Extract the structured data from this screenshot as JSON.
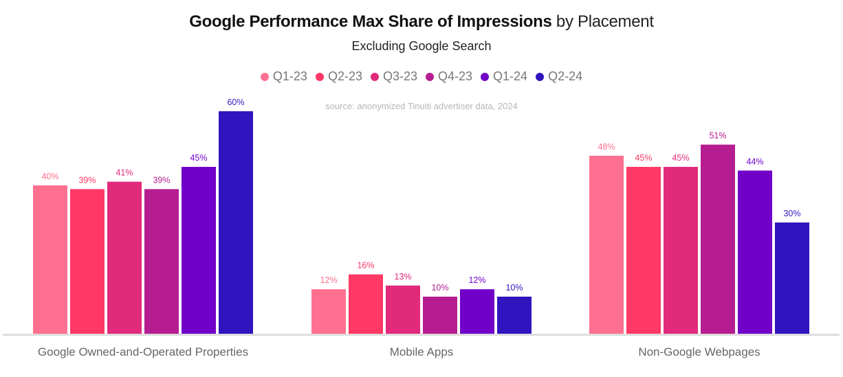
{
  "chart_data": {
    "type": "bar",
    "title_bold": "Google Performance Max Share of Impressions",
    "title_light": "by Placement",
    "subtitle": "Excluding Google Search",
    "source": "source: anonymized Tinuiti advertiser data, 2024",
    "categories": [
      "Google Owned-and-Operated Properties",
      "Mobile Apps",
      "Non-Google Webpages"
    ],
    "series": [
      {
        "name": "Q1-23",
        "color": "#ff7090",
        "values": [
          40,
          12,
          48
        ]
      },
      {
        "name": "Q2-23",
        "color": "#ff3865",
        "values": [
          39,
          16,
          45
        ]
      },
      {
        "name": "Q3-23",
        "color": "#e22a7b",
        "values": [
          41,
          13,
          45
        ]
      },
      {
        "name": "Q4-23",
        "color": "#b51d90",
        "values": [
          39,
          10,
          51
        ]
      },
      {
        "name": "Q1-24",
        "color": "#7100c9",
        "values": [
          45,
          12,
          44
        ]
      },
      {
        "name": "Q2-24",
        "color": "#3014bd",
        "values": [
          60,
          10,
          30
        ]
      }
    ],
    "value_suffix": "%",
    "xlabel": "",
    "ylabel": "",
    "ylim": [
      0,
      60
    ],
    "grid": false,
    "legend_position": "top-center",
    "baseline_color": "#dddddd"
  }
}
